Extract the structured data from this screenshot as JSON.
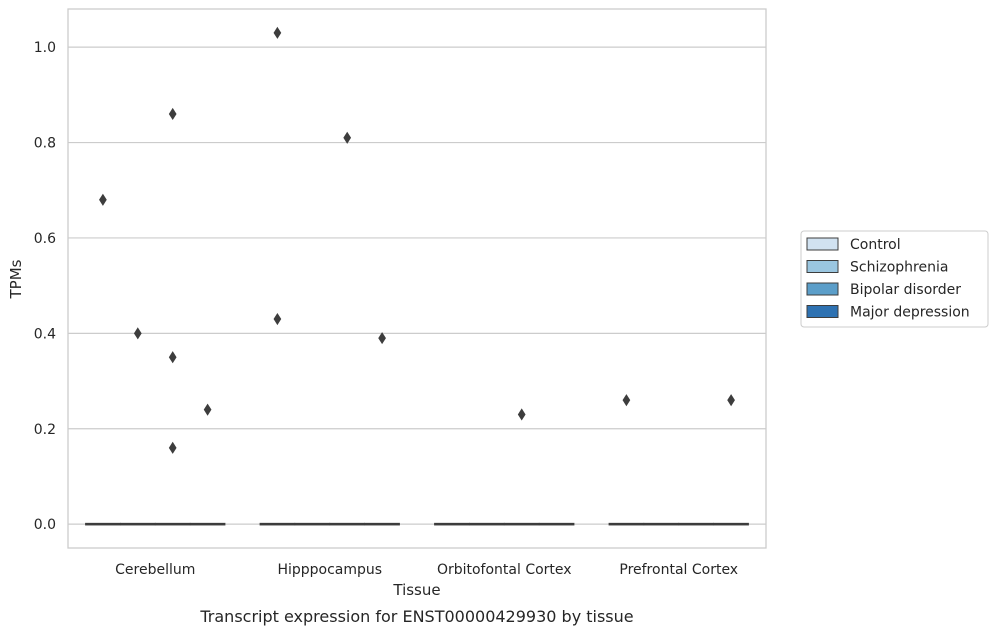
{
  "chart_data": {
    "type": "box",
    "caption": "Transcript expression for ENST00000429930 by tissue",
    "xlabel": "Tissue",
    "ylabel": "TPMs",
    "ylim": [
      -0.05,
      1.08
    ],
    "yticks": [
      0.0,
      0.2,
      0.4,
      0.6,
      0.8,
      1.0
    ],
    "ytick_labels": [
      "0.0",
      "0.2",
      "0.4",
      "0.6",
      "0.8",
      "1.0"
    ],
    "grid": "horizontal",
    "legend_position": "right",
    "categories": [
      "Cerebellum",
      "Hipppocampus",
      "Orbitofontal Cortex",
      "Prefrontal Cortex"
    ],
    "series": [
      {
        "name": "Control",
        "color": "#d1e2f1",
        "median": [
          0,
          0,
          0,
          0
        ],
        "q1": [
          0,
          0,
          0,
          0
        ],
        "q3": [
          0,
          0,
          0,
          0
        ],
        "outliers": [
          [
            0.68
          ],
          [
            1.03,
            0.43
          ],
          [],
          [
            0.26
          ]
        ]
      },
      {
        "name": "Schizophrenia",
        "color": "#9ac6e0",
        "median": [
          0,
          0,
          0,
          0
        ],
        "q1": [
          0,
          0,
          0,
          0
        ],
        "q3": [
          0,
          0,
          0,
          0
        ],
        "outliers": [
          [
            0.4
          ],
          [],
          [],
          []
        ]
      },
      {
        "name": "Bipolar disorder",
        "color": "#5b9ec9",
        "median": [
          0,
          0,
          0,
          0
        ],
        "q1": [
          0,
          0,
          0,
          0
        ],
        "q3": [
          0,
          0,
          0,
          0
        ],
        "outliers": [
          [
            0.86,
            0.35,
            0.16
          ],
          [
            0.81
          ],
          [
            0.23
          ],
          []
        ]
      },
      {
        "name": "Major depression",
        "color": "#2e72b2",
        "median": [
          0,
          0,
          0,
          0
        ],
        "q1": [
          0,
          0,
          0,
          0
        ],
        "q3": [
          0,
          0,
          0,
          0
        ],
        "outliers": [
          [
            0.24
          ],
          [
            0.39
          ],
          [],
          [
            0.26
          ]
        ]
      }
    ]
  }
}
